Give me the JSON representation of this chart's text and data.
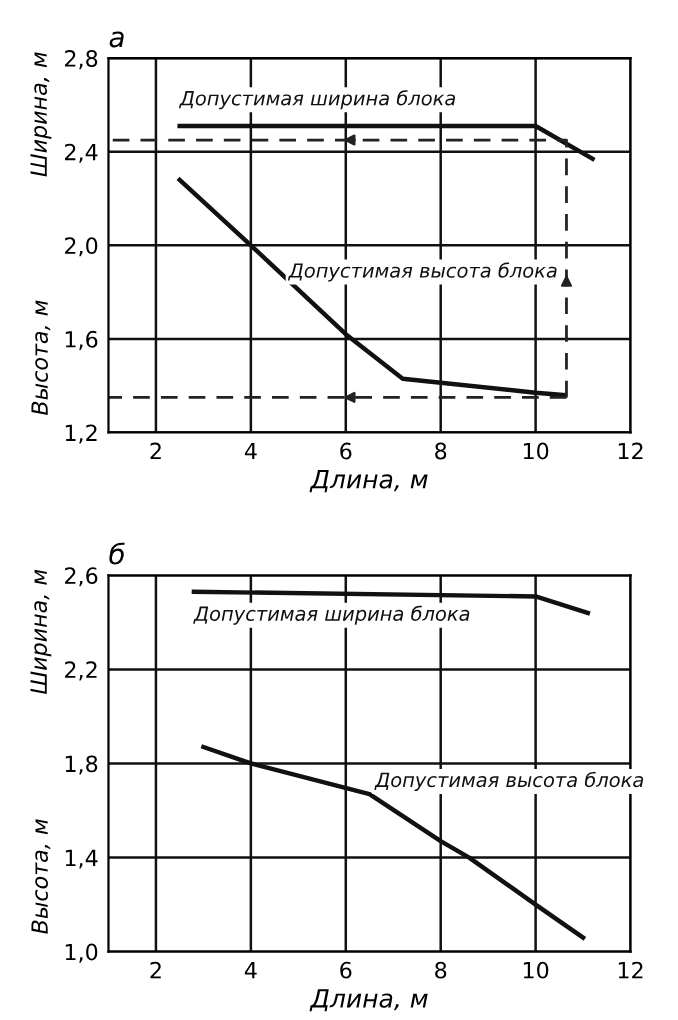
{
  "chart_data": [
    {
      "type": "line",
      "title": "а",
      "xlabel": "Длина, м",
      "ylabel": "Высота, м",
      "annotations": [
        "Ширина, м"
      ],
      "xlim": [
        1,
        12
      ],
      "ylim": [
        1.2,
        2.8
      ],
      "xticks": [
        2,
        4,
        6,
        8,
        10,
        12
      ],
      "yticks": [
        {
          "value": 1.2,
          "label": "1,2"
        },
        {
          "value": 1.6,
          "label": "1,6"
        },
        {
          "value": 2.0,
          "label": "2,0"
        },
        {
          "value": 2.4,
          "label": "2,4"
        },
        {
          "value": 2.8,
          "label": "2,8"
        }
      ],
      "grid": true,
      "legend": false,
      "series": [
        {
          "name": "Допустимая ширина блока",
          "color": "#111111",
          "x": [
            2.5,
            10,
            11.2
          ],
          "values": [
            2.51,
            2.51,
            2.37
          ]
        },
        {
          "name": "Допустимая высота блока",
          "color": "#111111",
          "x": [
            2.5,
            4,
            6,
            7.2,
            10,
            10.6
          ],
          "values": [
            2.28,
            2.0,
            1.62,
            1.43,
            1.37,
            1.36
          ]
        },
        {
          "color": "#222222",
          "line_style": "dashed",
          "x": [
            10.65,
            1.0
          ],
          "values": [
            1.35,
            1.35
          ]
        },
        {
          "color": "#222222",
          "line_style": "dashed",
          "x": [
            10.65,
            10.65,
            1.0
          ],
          "values": [
            1.35,
            2.45,
            2.45
          ]
        }
      ]
    },
    {
      "type": "line",
      "title": "б",
      "xlabel": "Длина, м",
      "ylabel": "Высота, м",
      "annotations": [
        "Ширина, м"
      ],
      "xlim": [
        1,
        12
      ],
      "ylim": [
        1.0,
        2.6
      ],
      "xticks": [
        2,
        4,
        6,
        8,
        10,
        12
      ],
      "yticks": [
        {
          "value": 1.0,
          "label": "1,0"
        },
        {
          "value": 1.4,
          "label": "1,4"
        },
        {
          "value": 1.8,
          "label": "1,8"
        },
        {
          "value": 2.2,
          "label": "2,2"
        },
        {
          "value": 2.6,
          "label": "2,6"
        }
      ],
      "grid": true,
      "legend": false,
      "series": [
        {
          "name": "Допустимая ширина блока",
          "color": "#111111",
          "x": [
            2.8,
            10,
            11.1
          ],
          "values": [
            2.53,
            2.51,
            2.44
          ]
        },
        {
          "name": "Допустимая высота блока",
          "color": "#111111",
          "x": [
            3,
            4,
            6.5,
            8,
            8.6,
            10,
            11
          ],
          "values": [
            1.87,
            1.8,
            1.67,
            1.47,
            1.4,
            1.2,
            1.06
          ]
        }
      ]
    }
  ]
}
